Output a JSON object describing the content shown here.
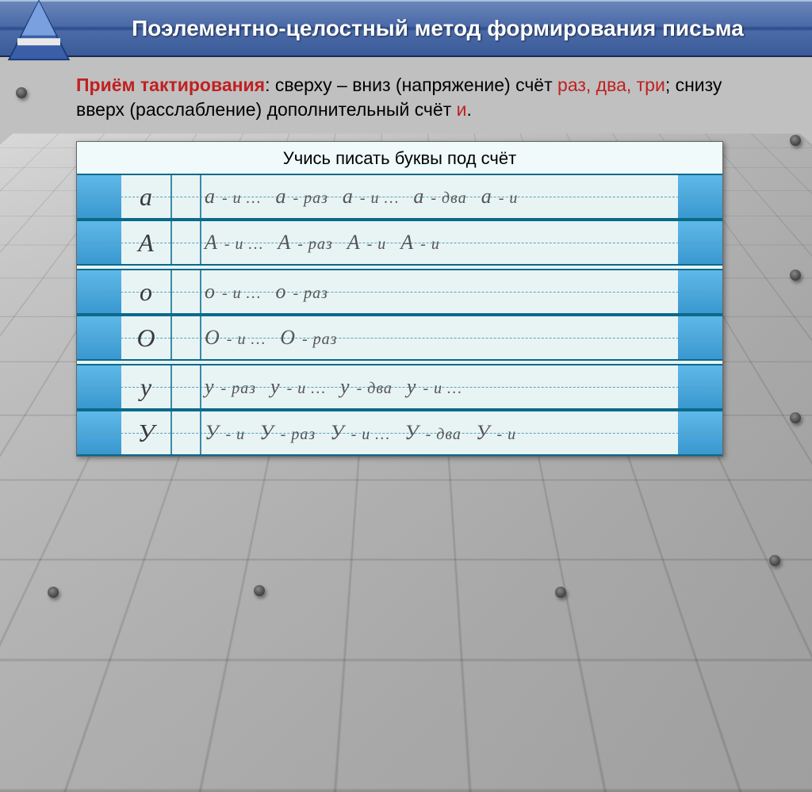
{
  "header": {
    "title": "Поэлементно-целостный метод формирования письма"
  },
  "paragraph": {
    "lead": "Приём тактирования",
    "part1": ": сверху – вниз (напряжение) счёт ",
    "counts": "раз, два, три",
    "part2": "; снизу вверх (расслабление) дополнительный счёт ",
    "extra": "и",
    "tail": "."
  },
  "sheet": {
    "title": "Учись писать буквы под счёт",
    "rows": [
      {
        "letter": "а",
        "cells": [
          "а - и …",
          "а - раз",
          "а - и …",
          "а - два",
          "а - и"
        ]
      },
      {
        "letter": "А",
        "cells": [
          "А - и …",
          "А - раз",
          "А - и",
          "А - и",
          ""
        ]
      },
      {
        "letter": "о",
        "cells": [
          "о - и …",
          "о - раз",
          "",
          "",
          ""
        ]
      },
      {
        "letter": "О",
        "cells": [
          "О - и …",
          "О - раз",
          "",
          "",
          ""
        ]
      },
      {
        "letter": "у",
        "cells": [
          "у - раз",
          "у - и …",
          "у - два",
          "у - и …",
          ""
        ]
      },
      {
        "letter": "У",
        "cells": [
          "У - и",
          "У - раз",
          "У - и …",
          "У - два",
          "У - и"
        ]
      }
    ]
  },
  "style": {
    "header_gradient": [
      "#6a85b8",
      "#2b4a88"
    ],
    "rule_color": "#0a6a8a",
    "margin_bar_color": "#3a98d0",
    "background": "#c0c0c0",
    "sheet_bg": "#e8f4f4",
    "red": "#c02020",
    "font_size_header": 28,
    "font_size_para": 23,
    "font_size_sheet_title": 22,
    "font_size_letter": 32,
    "font_size_script": 20
  }
}
